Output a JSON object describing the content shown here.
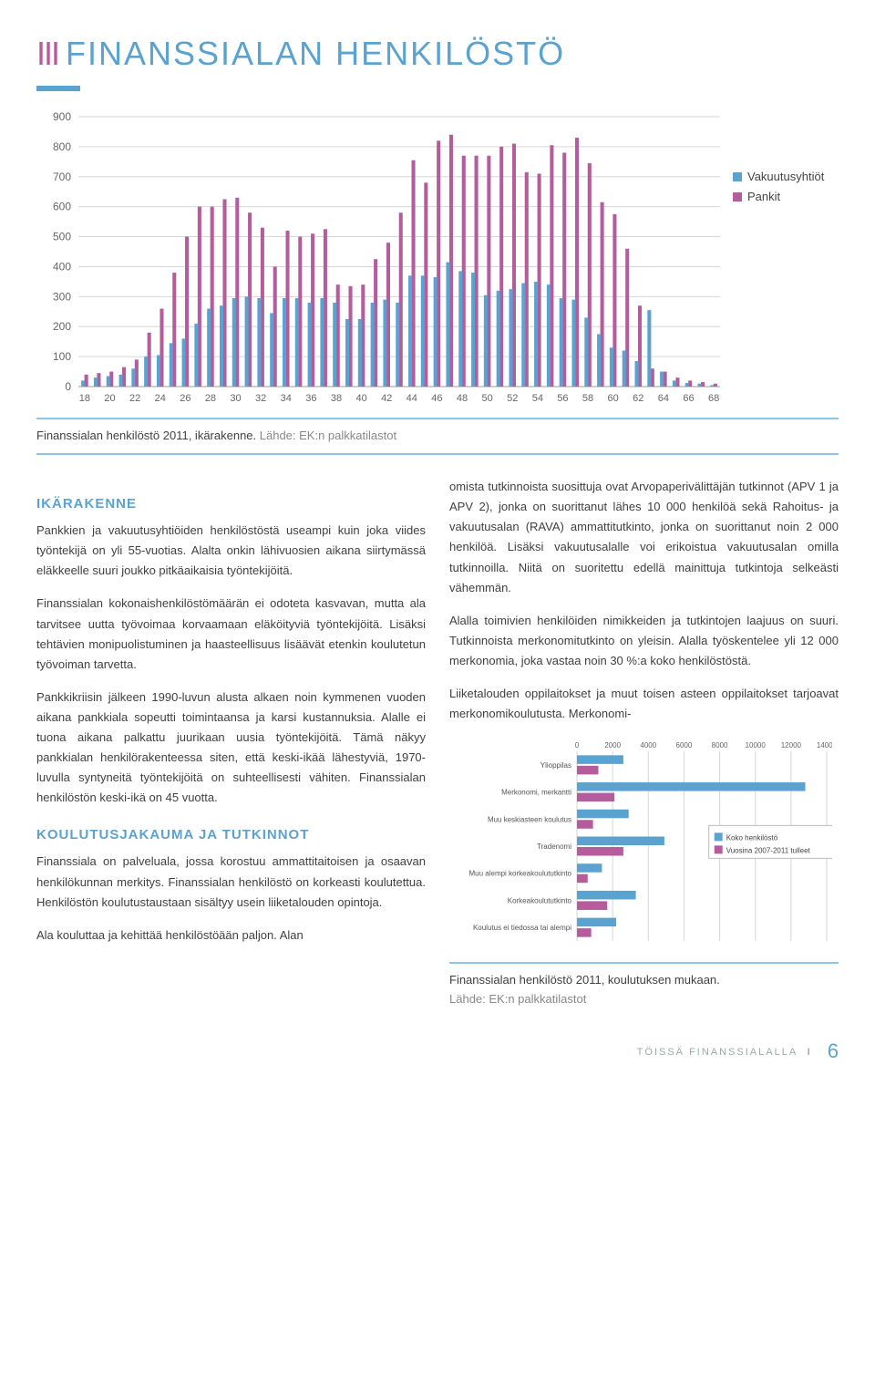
{
  "page_title_prefix": "III",
  "page_title": "FINANSSIALAN HENKILÖSTÖ",
  "chart1": {
    "type": "grouped-bar",
    "ylim": [
      0,
      900
    ],
    "ytick_step": 100,
    "ylabels": [
      "0",
      "100",
      "200",
      "300",
      "400",
      "500",
      "600",
      "700",
      "800",
      "900"
    ],
    "xticks": [
      18,
      20,
      22,
      24,
      26,
      28,
      30,
      32,
      34,
      36,
      38,
      40,
      42,
      44,
      46,
      48,
      50,
      52,
      54,
      56,
      58,
      60,
      62,
      64,
      66,
      68
    ],
    "legend": {
      "items": [
        {
          "label": "Vakuutusyhtiöt",
          "color": "#5aa3d0"
        },
        {
          "label": "Pankit",
          "color": "#b45c9c"
        }
      ]
    },
    "colors": {
      "vakuutus": "#5aa3d0",
      "pankit": "#b45c9c",
      "grid": "#d6d6d6",
      "axis": "#999"
    },
    "ages": [
      18,
      19,
      20,
      21,
      22,
      23,
      24,
      25,
      26,
      27,
      28,
      29,
      30,
      31,
      32,
      33,
      34,
      35,
      36,
      37,
      38,
      39,
      40,
      41,
      42,
      43,
      44,
      45,
      46,
      47,
      48,
      49,
      50,
      51,
      52,
      53,
      54,
      55,
      56,
      57,
      58,
      59,
      60,
      61,
      62,
      63,
      64,
      65,
      66,
      67,
      68
    ],
    "vakuutus": [
      20,
      30,
      35,
      40,
      60,
      100,
      105,
      145,
      160,
      210,
      260,
      270,
      295,
      300,
      295,
      245,
      295,
      295,
      280,
      295,
      280,
      225,
      225,
      280,
      290,
      280,
      370,
      370,
      365,
      415,
      385,
      380,
      305,
      320,
      325,
      345,
      350,
      340,
      295,
      290,
      230,
      175,
      130,
      120,
      85,
      255,
      50,
      20,
      12,
      10,
      5
    ],
    "pankit": [
      40,
      45,
      50,
      65,
      90,
      180,
      260,
      380,
      500,
      600,
      600,
      625,
      630,
      580,
      530,
      400,
      520,
      500,
      510,
      525,
      340,
      335,
      340,
      425,
      480,
      580,
      755,
      680,
      820,
      840,
      770,
      770,
      770,
      800,
      810,
      715,
      710,
      805,
      780,
      830,
      745,
      615,
      575,
      460,
      270,
      60,
      50,
      30,
      20,
      15,
      10
    ],
    "bar_width": 0.42
  },
  "chart1_caption": "Finanssialan henkilöstö 2011, ikärakenne.",
  "chart1_source": "Lähde: EK:n palkkatilastot",
  "sections": {
    "ikarakenne_title": "IKÄRAKENNE",
    "ikarakenne_p1": "Pankkien ja vakuutusyhtiöiden henkilöstöstä useampi kuin joka viides työntekijä on yli 55-vuotias. Alalta onkin lähivuosien aikana siirtymässä eläkkeelle suuri joukko pitkäaikaisia työntekijöitä.",
    "ikarakenne_p2": "Finanssialan kokonaishenkilöstömäärän ei odoteta kasvavan, mutta ala tarvitsee uutta työvoimaa korvaamaan eläköityviä työntekijöitä. Lisäksi tehtävien monipuolistuminen ja haasteellisuus lisäävät etenkin koulutetun työvoiman tarvetta.",
    "ikarakenne_p3": "Pankkikriisin jälkeen 1990-luvun alusta alkaen noin kymmenen vuoden aikana pankkiala sopeutti toimintaansa ja karsi kustannuksia. Alalle ei tuona aikana palkattu juurikaan uusia työntekijöitä. Tämä näkyy pankkialan henkilörakenteessa siten, että keski-ikää lähestyviä, 1970-luvulla syntyneitä työntekijöitä on suhteellisesti vähiten. Finanssialan henkilöstön keski-ikä on 45 vuotta.",
    "koulutus_title": "KOULUTUSJAKAUMA JA TUTKINNOT",
    "koulutus_p1": "Finanssiala on palveluala, jossa korostuu ammattitaitoisen ja osaavan henkilökunnan merkitys. Finanssialan henkilöstö on korkeasti koulutettua. Henkilöstön koulutustaustaan sisältyy usein liiketalouden opintoja.",
    "koulutus_p2": "Ala kouluttaa ja kehittää henkilöstöään paljon. Alan",
    "right_p1": "omista tutkinnoista suosittuja ovat Arvopaperivälittäjän tutkinnot (APV 1 ja APV 2), jonka on suorittanut lähes 10 000 henkilöä sekä Rahoitus- ja vakuutusalan (RAVA) ammattitutkinto, jonka on suorittanut noin 2 000 henkilöä. Lisäksi vakuutusalalle voi erikoistua vakuutusalan omilla tutkinnoilla. Niitä on suoritettu edellä mainittuja tutkintoja selkeästi vähemmän.",
    "right_p2": "Alalla toimivien henkilöiden nimikkeiden ja tutkintojen laajuus on suuri. Tutkinnoista merkonomitutkinto on yleisin. Alalla työskentelee yli 12 000 merkonomia, joka vastaa noin 30 %:a koko henkilöstöstä.",
    "right_p3": "Liiketalouden oppilaitokset ja muut toisen asteen oppilaitokset tarjoavat merkonomikoulutusta. Merkonomi-"
  },
  "chart2": {
    "type": "grouped-hbar",
    "xlim": [
      0,
      14000
    ],
    "xtick_step": 2000,
    "xlabels": [
      "0",
      "2000",
      "4000",
      "6000",
      "8000",
      "10000",
      "12000",
      "14000"
    ],
    "categories": [
      "Ylioppilas",
      "Merkonomi, merkantti",
      "Muu keskiasteen koulutus",
      "Tradenomi",
      "Muu alempi korkeakoulututkinto",
      "Korkeakoulututkinto",
      "Koulutus ei tiedossa tai alempi"
    ],
    "series": [
      {
        "name": "Koko henkilöstö",
        "color": "#5aa3d0",
        "values": [
          2600,
          12800,
          2900,
          4900,
          1400,
          3300,
          2200
        ]
      },
      {
        "name": "Vuosina 2007-2011 tulleet",
        "color": "#b45c9c",
        "values": [
          1200,
          2100,
          900,
          2600,
          600,
          1700,
          800
        ]
      }
    ],
    "label_fontsize": 8,
    "grid_color": "#d6d6d6"
  },
  "chart2_caption": "Finanssialan henkilöstö 2011, koulutuksen mukaan.",
  "chart2_source": "Lähde: EK:n palkkatilastot",
  "footer_text": "TÖISSÄ FINANSSIALALLA",
  "page_number": "6"
}
